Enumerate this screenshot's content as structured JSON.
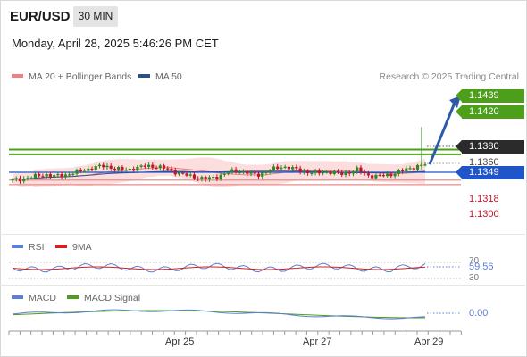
{
  "header": {
    "symbol": "EUR/USD",
    "timeframe": "30 MIN",
    "datetime": "Monday, April 28, 2025 5:46:26 PM CET"
  },
  "legend_main": [
    {
      "label": "MA 20 + Bollinger Bands",
      "color": "#f08080"
    },
    {
      "label": "MA 50",
      "color": "#2c4f8f"
    }
  ],
  "credit": "Research © 2025 Trading Central",
  "legend_rsi": [
    {
      "label": "RSI",
      "color": "#5a7fd6"
    },
    {
      "label": "9MA",
      "color": "#d42020"
    }
  ],
  "legend_macd": [
    {
      "label": "MACD",
      "color": "#5a7fd6"
    },
    {
      "label": "MACD Signal",
      "color": "#4d9e1a"
    }
  ],
  "colors": {
    "up": "#2f8a1e",
    "down": "#c0162a",
    "band_fill": "#fcd3d3",
    "green_level": "#4d9e1a",
    "blue_level": "#1f55c8",
    "red_level": "#e98b8b",
    "arrow": "#2d5aa8"
  },
  "levels": {
    "r2": "1.1439",
    "r1": "1.1420",
    "last": "1.1380",
    "ref": "1.1360",
    "pivot": "1.1349",
    "s1": "1.1318",
    "s2": "1.1300"
  },
  "rsi": {
    "value": "59.56",
    "upper": "70",
    "lower": "30"
  },
  "macd": {
    "value": "0.00"
  },
  "x_axis": [
    "Apr 25",
    "Apr 27",
    "Apr 29"
  ],
  "chart_data": {
    "type": "candlestick",
    "title": "EUR/USD 30 MIN",
    "x_ticks": [
      "Apr 25",
      "Apr 27",
      "Apr 29"
    ],
    "y_labels": [
      "1.1439",
      "1.1420",
      "1.1380",
      "1.1360",
      "1.1349",
      "1.1318",
      "1.1300"
    ],
    "approx_close_path": [
      1.1318,
      1.1322,
      1.1328,
      1.1335,
      1.134,
      1.1333,
      1.1338,
      1.1345,
      1.1352,
      1.1362,
      1.137,
      1.1375,
      1.1365,
      1.1358,
      1.1362,
      1.1368,
      1.1375,
      1.1372,
      1.1365,
      1.1355,
      1.1342,
      1.1335,
      1.1328,
      1.1322,
      1.133,
      1.134,
      1.1352,
      1.1355,
      1.1345,
      1.1338,
      1.135,
      1.1362,
      1.1372,
      1.1365,
      1.1358,
      1.135,
      1.1345,
      1.1352,
      1.1348,
      1.1342,
      1.135,
      1.136,
      1.134,
      1.1332,
      1.1336,
      1.1342,
      1.135,
      1.1365,
      1.1372,
      1.138
    ],
    "forecast": {
      "from": 1.138,
      "to": 1.1439
    },
    "resistance": [
      1.1439,
      1.142
    ],
    "pivot": 1.1349,
    "support": [
      1.1318,
      1.13
    ],
    "ylim": [
      1.129,
      1.145
    ]
  }
}
